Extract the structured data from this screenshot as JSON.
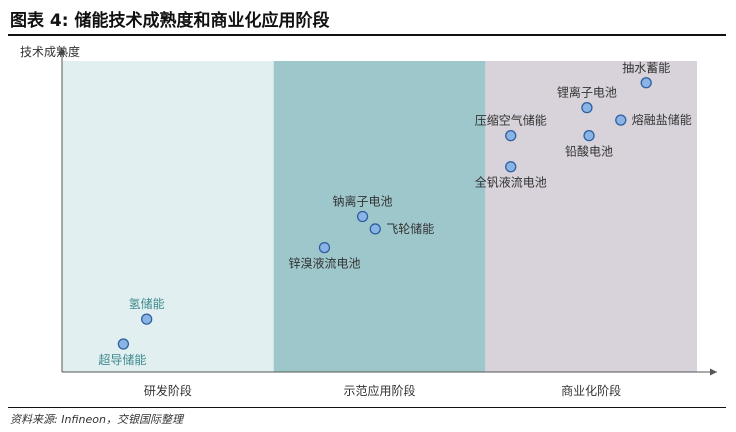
{
  "figure": {
    "title": "图表 4: 储能技术成熟度和商业化应用阶段",
    "source": "资料来源: Infineon，交银国际整理"
  },
  "chart_data": {
    "type": "scatter",
    "title": "图表 4: 储能技术成熟度和商业化应用阶段",
    "ylabel": "技术成熟度",
    "xlabel": "",
    "xlim": [
      0,
      3
    ],
    "ylim": [
      0,
      10
    ],
    "grid": false,
    "legend": "none",
    "stages": [
      {
        "label": "研发阶段",
        "from": 0,
        "to": 1,
        "color": "#e1eff0"
      },
      {
        "label": "示范应用阶段",
        "from": 1,
        "to": 2,
        "color": "#9ec7cc"
      },
      {
        "label": "商业化阶段",
        "from": 2,
        "to": 3,
        "color": "#d8d3da"
      }
    ],
    "points": [
      {
        "label": "超导储能",
        "x": 0.29,
        "y": 0.9,
        "label_pos": "below-left",
        "label_color": "#3d8a8e"
      },
      {
        "label": "氢储能",
        "x": 0.4,
        "y": 1.7,
        "label_pos": "above",
        "label_color": "#3d8a8e"
      },
      {
        "label": "锌溴液流电池",
        "x": 1.24,
        "y": 4.0,
        "label_pos": "below",
        "label_color": "#333333"
      },
      {
        "label": "钠离子电池",
        "x": 1.42,
        "y": 5.0,
        "label_pos": "above",
        "label_color": "#333333"
      },
      {
        "label": "飞轮储能",
        "x": 1.48,
        "y": 4.6,
        "label_pos": "right",
        "label_color": "#333333"
      },
      {
        "label": "全钒液流电池",
        "x": 2.12,
        "y": 6.6,
        "label_pos": "below",
        "label_color": "#333333"
      },
      {
        "label": "压缩空气储能",
        "x": 2.12,
        "y": 7.6,
        "label_pos": "above",
        "label_color": "#333333"
      },
      {
        "label": "铅酸电池",
        "x": 2.49,
        "y": 7.6,
        "label_pos": "below",
        "label_color": "#333333"
      },
      {
        "label": "锂离子电池",
        "x": 2.48,
        "y": 8.5,
        "label_pos": "above",
        "label_color": "#333333"
      },
      {
        "label": "熔融盐储能",
        "x": 2.64,
        "y": 8.1,
        "label_pos": "right",
        "label_color": "#333333"
      },
      {
        "label": "抽水蓄能",
        "x": 2.76,
        "y": 9.3,
        "label_pos": "above",
        "label_color": "#333333"
      }
    ],
    "colors": {
      "marker_fill": "#8ab4e6",
      "marker_stroke": "#2f5f9e",
      "axis": "#555555"
    }
  }
}
